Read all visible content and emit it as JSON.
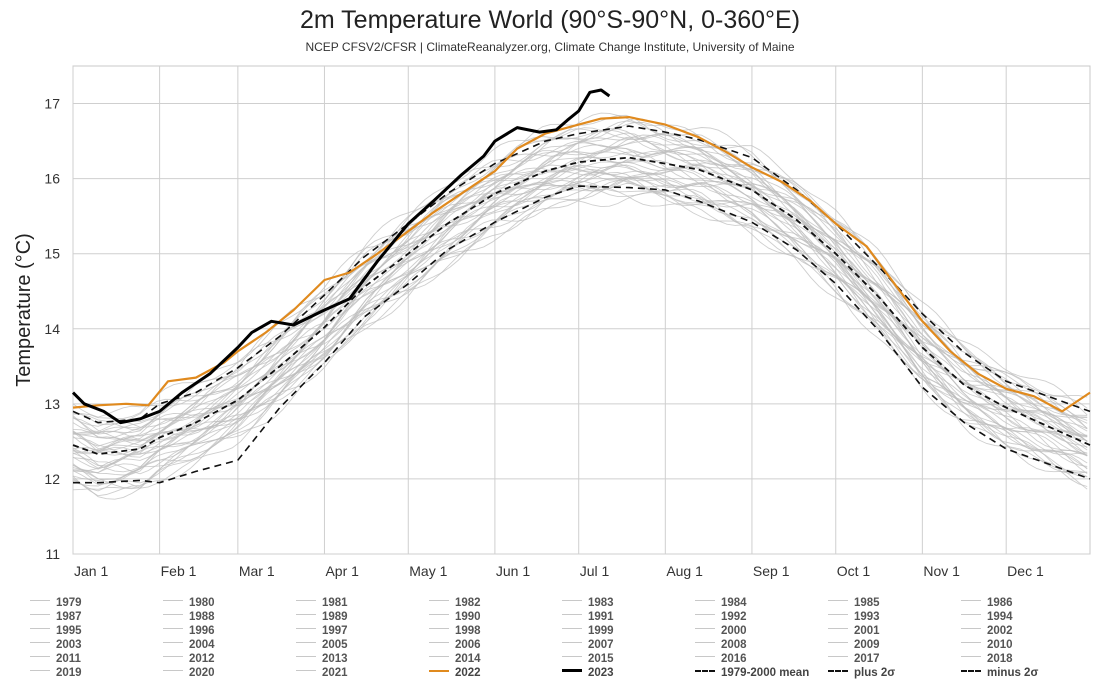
{
  "chart_data": {
    "type": "line",
    "title": "2m Temperature World (90°S-90°N, 0-360°E)",
    "subtitle": "NCEP CFSV2/CFSR | ClimateReanalyzer.org, Climate Change Institute, University of Maine",
    "ylabel": "Temperature (°C)",
    "xlabel": "",
    "ylim": [
      11,
      17.5
    ],
    "xlim": [
      1,
      365
    ],
    "yticks": [
      11,
      12,
      13,
      14,
      15,
      16,
      17
    ],
    "xticks": [
      {
        "day": 1,
        "label": "Jan 1"
      },
      {
        "day": 32,
        "label": "Feb 1"
      },
      {
        "day": 60,
        "label": "Mar 1"
      },
      {
        "day": 91,
        "label": "Apr 1"
      },
      {
        "day": 121,
        "label": "May 1"
      },
      {
        "day": 152,
        "label": "Jun 1"
      },
      {
        "day": 182,
        "label": "Jul 1"
      },
      {
        "day": 213,
        "label": "Aug 1"
      },
      {
        "day": 244,
        "label": "Sep 1"
      },
      {
        "day": 274,
        "label": "Oct 1"
      },
      {
        "day": 305,
        "label": "Nov 1"
      },
      {
        "day": 335,
        "label": "Dec 1"
      }
    ],
    "grid": true,
    "legend_position": "bottom",
    "mean_1979_2000": [
      [
        1,
        12.45
      ],
      [
        10,
        12.33
      ],
      [
        25,
        12.4
      ],
      [
        32,
        12.55
      ],
      [
        45,
        12.75
      ],
      [
        60,
        13.05
      ],
      [
        75,
        13.5
      ],
      [
        91,
        14.02
      ],
      [
        105,
        14.55
      ],
      [
        121,
        15.0
      ],
      [
        135,
        15.4
      ],
      [
        152,
        15.8
      ],
      [
        170,
        16.1
      ],
      [
        182,
        16.22
      ],
      [
        200,
        16.28
      ],
      [
        213,
        16.2
      ],
      [
        225,
        16.12
      ],
      [
        244,
        15.85
      ],
      [
        260,
        15.45
      ],
      [
        274,
        15.0
      ],
      [
        290,
        14.4
      ],
      [
        305,
        13.75
      ],
      [
        320,
        13.25
      ],
      [
        335,
        12.95
      ],
      [
        350,
        12.7
      ],
      [
        365,
        12.45
      ]
    ],
    "plus_2sigma": [
      [
        1,
        12.9
      ],
      [
        10,
        12.75
      ],
      [
        25,
        12.8
      ],
      [
        32,
        13.0
      ],
      [
        45,
        13.15
      ],
      [
        60,
        13.48
      ],
      [
        75,
        13.9
      ],
      [
        91,
        14.45
      ],
      [
        105,
        14.95
      ],
      [
        121,
        15.4
      ],
      [
        135,
        15.8
      ],
      [
        152,
        16.2
      ],
      [
        170,
        16.5
      ],
      [
        182,
        16.6
      ],
      [
        200,
        16.7
      ],
      [
        213,
        16.62
      ],
      [
        225,
        16.52
      ],
      [
        244,
        16.28
      ],
      [
        260,
        15.85
      ],
      [
        274,
        15.4
      ],
      [
        290,
        14.8
      ],
      [
        305,
        14.2
      ],
      [
        320,
        13.68
      ],
      [
        335,
        13.3
      ],
      [
        350,
        13.1
      ],
      [
        365,
        12.9
      ]
    ],
    "minus_2sigma": [
      [
        1,
        11.95
      ],
      [
        10,
        11.95
      ],
      [
        25,
        11.98
      ],
      [
        32,
        11.95
      ],
      [
        45,
        12.1
      ],
      [
        60,
        12.25
      ],
      [
        75,
        12.95
      ],
      [
        91,
        13.55
      ],
      [
        105,
        14.15
      ],
      [
        121,
        14.6
      ],
      [
        135,
        15.05
      ],
      [
        152,
        15.42
      ],
      [
        170,
        15.75
      ],
      [
        182,
        15.9
      ],
      [
        200,
        15.88
      ],
      [
        213,
        15.85
      ],
      [
        225,
        15.7
      ],
      [
        244,
        15.42
      ],
      [
        260,
        15.05
      ],
      [
        274,
        14.6
      ],
      [
        290,
        13.95
      ],
      [
        305,
        13.22
      ],
      [
        320,
        12.75
      ],
      [
        335,
        12.4
      ],
      [
        350,
        12.2
      ],
      [
        365,
        12.0
      ]
    ],
    "series": [
      {
        "name": "2022",
        "color": "#e08a1e",
        "values": [
          [
            1,
            12.95
          ],
          [
            10,
            12.98
          ],
          [
            20,
            13.0
          ],
          [
            28,
            12.98
          ],
          [
            35,
            13.3
          ],
          [
            45,
            13.35
          ],
          [
            55,
            13.55
          ],
          [
            60,
            13.7
          ],
          [
            70,
            13.95
          ],
          [
            80,
            14.25
          ],
          [
            91,
            14.65
          ],
          [
            100,
            14.75
          ],
          [
            110,
            15.0
          ],
          [
            121,
            15.3
          ],
          [
            130,
            15.55
          ],
          [
            140,
            15.8
          ],
          [
            152,
            16.1
          ],
          [
            160,
            16.4
          ],
          [
            170,
            16.6
          ],
          [
            182,
            16.72
          ],
          [
            190,
            16.8
          ],
          [
            200,
            16.82
          ],
          [
            213,
            16.72
          ],
          [
            225,
            16.55
          ],
          [
            235,
            16.35
          ],
          [
            244,
            16.15
          ],
          [
            255,
            15.95
          ],
          [
            265,
            15.7
          ],
          [
            274,
            15.4
          ],
          [
            285,
            15.1
          ],
          [
            295,
            14.6
          ],
          [
            305,
            14.1
          ],
          [
            315,
            13.7
          ],
          [
            325,
            13.4
          ],
          [
            335,
            13.2
          ],
          [
            345,
            13.1
          ],
          [
            355,
            12.9
          ],
          [
            365,
            13.15
          ]
        ]
      },
      {
        "name": "2023",
        "color": "#000000",
        "values": [
          [
            1,
            13.15
          ],
          [
            5,
            13.0
          ],
          [
            12,
            12.9
          ],
          [
            18,
            12.75
          ],
          [
            25,
            12.8
          ],
          [
            32,
            12.9
          ],
          [
            40,
            13.15
          ],
          [
            50,
            13.4
          ],
          [
            60,
            13.75
          ],
          [
            65,
            13.95
          ],
          [
            72,
            14.1
          ],
          [
            80,
            14.05
          ],
          [
            91,
            14.25
          ],
          [
            100,
            14.4
          ],
          [
            110,
            14.9
          ],
          [
            121,
            15.4
          ],
          [
            130,
            15.7
          ],
          [
            140,
            16.05
          ],
          [
            148,
            16.3
          ],
          [
            152,
            16.5
          ],
          [
            160,
            16.68
          ],
          [
            168,
            16.62
          ],
          [
            174,
            16.65
          ],
          [
            178,
            16.78
          ],
          [
            182,
            16.9
          ],
          [
            186,
            17.15
          ],
          [
            190,
            17.18
          ],
          [
            193,
            17.1
          ]
        ]
      }
    ],
    "legend": [
      "1979",
      "1980",
      "1981",
      "1982",
      "1983",
      "1984",
      "1985",
      "1986",
      "1987",
      "1988",
      "1989",
      "1990",
      "1991",
      "1992",
      "1993",
      "1994",
      "1995",
      "1996",
      "1997",
      "1998",
      "1999",
      "2000",
      "2001",
      "2002",
      "2003",
      "2004",
      "2005",
      "2006",
      "2007",
      "2008",
      "2009",
      "2010",
      "2011",
      "2012",
      "2013",
      "2014",
      "2015",
      "2016",
      "2017",
      "2018",
      "2019",
      "2020",
      "2021",
      "2022",
      "2023",
      "1979-2000 mean",
      "plus 2σ",
      "minus 2σ"
    ]
  }
}
